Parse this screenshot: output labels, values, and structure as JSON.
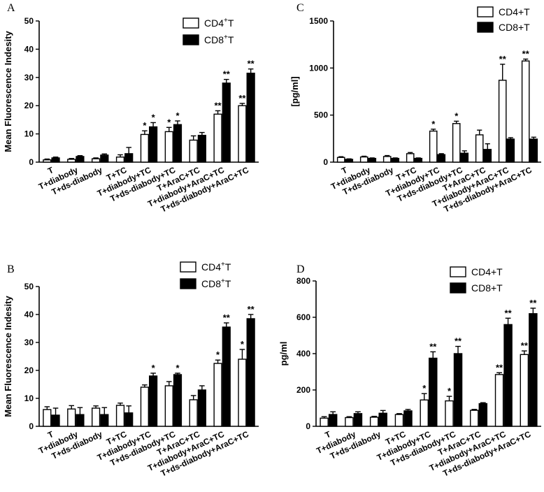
{
  "colors": {
    "series1": "#ffffff",
    "series2": "#000000",
    "stroke": "#000000"
  },
  "chart_data": [
    {
      "panel": "A",
      "type": "bar",
      "ylabel": "Mean Fluorescence Indesity",
      "ylim": [
        0,
        50
      ],
      "yticks": [
        0,
        10,
        20,
        30,
        40,
        50
      ],
      "categories": [
        "T",
        "T+diabody",
        "T+ds-diabody",
        "T+TC",
        "T+diabody+TC",
        "T+ds-diabody+TC",
        "T+AraC+TC",
        "T+diabody+AraC+TC",
        "T+ds-diabody+AraC+TC"
      ],
      "legend": [
        {
          "base": "CD4",
          "sup": "+",
          "suffix": "T"
        },
        {
          "base": "CD8",
          "sup": "+",
          "suffix": "T"
        }
      ],
      "series": [
        {
          "name": "CD4+T",
          "values": [
            0.8,
            1.0,
            1.2,
            1.8,
            9.8,
            10.8,
            7.8,
            17.0,
            20.0
          ],
          "errors": [
            0.3,
            0.3,
            0.3,
            0.8,
            1.3,
            1.5,
            1.5,
            1.2,
            0.8
          ],
          "stars": [
            "",
            "",
            "",
            "",
            "*",
            "*",
            "",
            "**",
            "**"
          ]
        },
        {
          "name": "CD8+T",
          "values": [
            1.5,
            2.0,
            2.5,
            3.0,
            12.5,
            13.3,
            9.5,
            28.0,
            31.5
          ],
          "errors": [
            0.3,
            0.3,
            0.4,
            2.2,
            1.5,
            1.3,
            1.0,
            1.3,
            1.5
          ],
          "stars": [
            "",
            "",
            "",
            "",
            "*",
            "*",
            "",
            "**",
            "**"
          ]
        }
      ]
    },
    {
      "panel": "C",
      "type": "bar",
      "ylabel": "[pg/ml]",
      "ylim": [
        0,
        1500
      ],
      "yticks": [
        0,
        500,
        1000,
        1500
      ],
      "categories": [
        "T",
        "T+diabody",
        "T+ds-diabody",
        "T+TC",
        "T+diabody+TC",
        "T+ds-diabody+TC",
        "T+AraC+TC",
        "T+diabody+AraC+TC",
        "T+ds-diabody+AraC+TC"
      ],
      "legend": [
        {
          "base": "CD4+T",
          "sup": "",
          "suffix": ""
        },
        {
          "base": "CD8+T",
          "sup": "",
          "suffix": ""
        }
      ],
      "series": [
        {
          "name": "CD4+T",
          "values": [
            50,
            55,
            60,
            90,
            330,
            410,
            290,
            870,
            1075
          ],
          "errors": [
            8,
            8,
            10,
            12,
            20,
            25,
            50,
            170,
            20
          ],
          "stars": [
            "",
            "",
            "",
            "",
            "*",
            "*",
            "",
            "**",
            "**"
          ]
        },
        {
          "name": "CD8+T",
          "values": [
            30,
            40,
            40,
            40,
            80,
            95,
            135,
            245,
            245
          ],
          "errors": [
            5,
            5,
            5,
            5,
            10,
            25,
            60,
            15,
            20
          ],
          "stars": [
            "",
            "",
            "",
            "",
            "",
            "",
            "",
            "",
            ""
          ]
        }
      ]
    },
    {
      "panel": "B",
      "type": "bar",
      "ylabel": "Mean Fluorescence Indesity",
      "ylim": [
        0,
        50
      ],
      "yticks": [
        0,
        10,
        20,
        30,
        40,
        50
      ],
      "categories": [
        "T",
        "T+diabody",
        "T+ds-diabody",
        "T+TC",
        "T+diabody+TC",
        "T+ds-diabody+TC",
        "T+AraC+TC",
        "T+diabody+AraC+TC",
        "T+ds-diabody+AraC+TC"
      ],
      "legend": [
        {
          "base": "CD4",
          "sup": "+",
          "suffix": "T"
        },
        {
          "base": "CD8",
          "sup": "+",
          "suffix": "T"
        }
      ],
      "series": [
        {
          "name": "CD4+T",
          "values": [
            6.0,
            6.2,
            6.5,
            7.5,
            14.0,
            14.5,
            9.5,
            22.5,
            24.0
          ],
          "errors": [
            1.0,
            1.2,
            0.8,
            0.8,
            0.8,
            1.5,
            1.5,
            1.2,
            3.5
          ],
          "stars": [
            "",
            "",
            "",
            "",
            "",
            "",
            "",
            "*",
            "*"
          ]
        },
        {
          "name": "CD8+T",
          "values": [
            4.0,
            4.2,
            4.2,
            4.8,
            18.0,
            18.5,
            13.0,
            35.5,
            38.5
          ],
          "errors": [
            2.5,
            2.5,
            2.5,
            2.5,
            1.0,
            0.5,
            1.5,
            1.5,
            1.5
          ],
          "stars": [
            "",
            "",
            "",
            "",
            "*",
            "*",
            "",
            "**",
            "**"
          ]
        }
      ]
    },
    {
      "panel": "D",
      "type": "bar",
      "ylabel": "pg/ml",
      "ylim": [
        0,
        800
      ],
      "yticks": [
        0,
        200,
        400,
        600,
        800
      ],
      "categories": [
        "T",
        "T+diabody",
        "T+ds-diabody",
        "T+TC",
        "T+diabody+TC",
        "T+ds-diabody+TC",
        "T+AraC+TC",
        "T+diabody+AraC+TC",
        "T+ds-diabody+AraC+TC"
      ],
      "legend": [
        {
          "base": "CD4+T",
          "sup": "",
          "suffix": ""
        },
        {
          "base": "CD8+T",
          "sup": "",
          "suffix": ""
        }
      ],
      "series": [
        {
          "name": "CD4+T",
          "values": [
            45,
            48,
            50,
            65,
            145,
            140,
            88,
            285,
            395
          ],
          "errors": [
            8,
            5,
            5,
            5,
            35,
            25,
            5,
            10,
            20
          ],
          "stars": [
            "",
            "",
            "",
            "",
            "*",
            "*",
            "",
            "**",
            "**"
          ]
        },
        {
          "name": "CD8+T",
          "values": [
            65,
            70,
            72,
            85,
            375,
            400,
            125,
            560,
            620
          ],
          "errors": [
            15,
            10,
            15,
            8,
            35,
            40,
            5,
            35,
            30
          ],
          "stars": [
            "",
            "",
            "",
            "",
            "**",
            "**",
            "",
            "**",
            "**"
          ]
        }
      ]
    }
  ]
}
